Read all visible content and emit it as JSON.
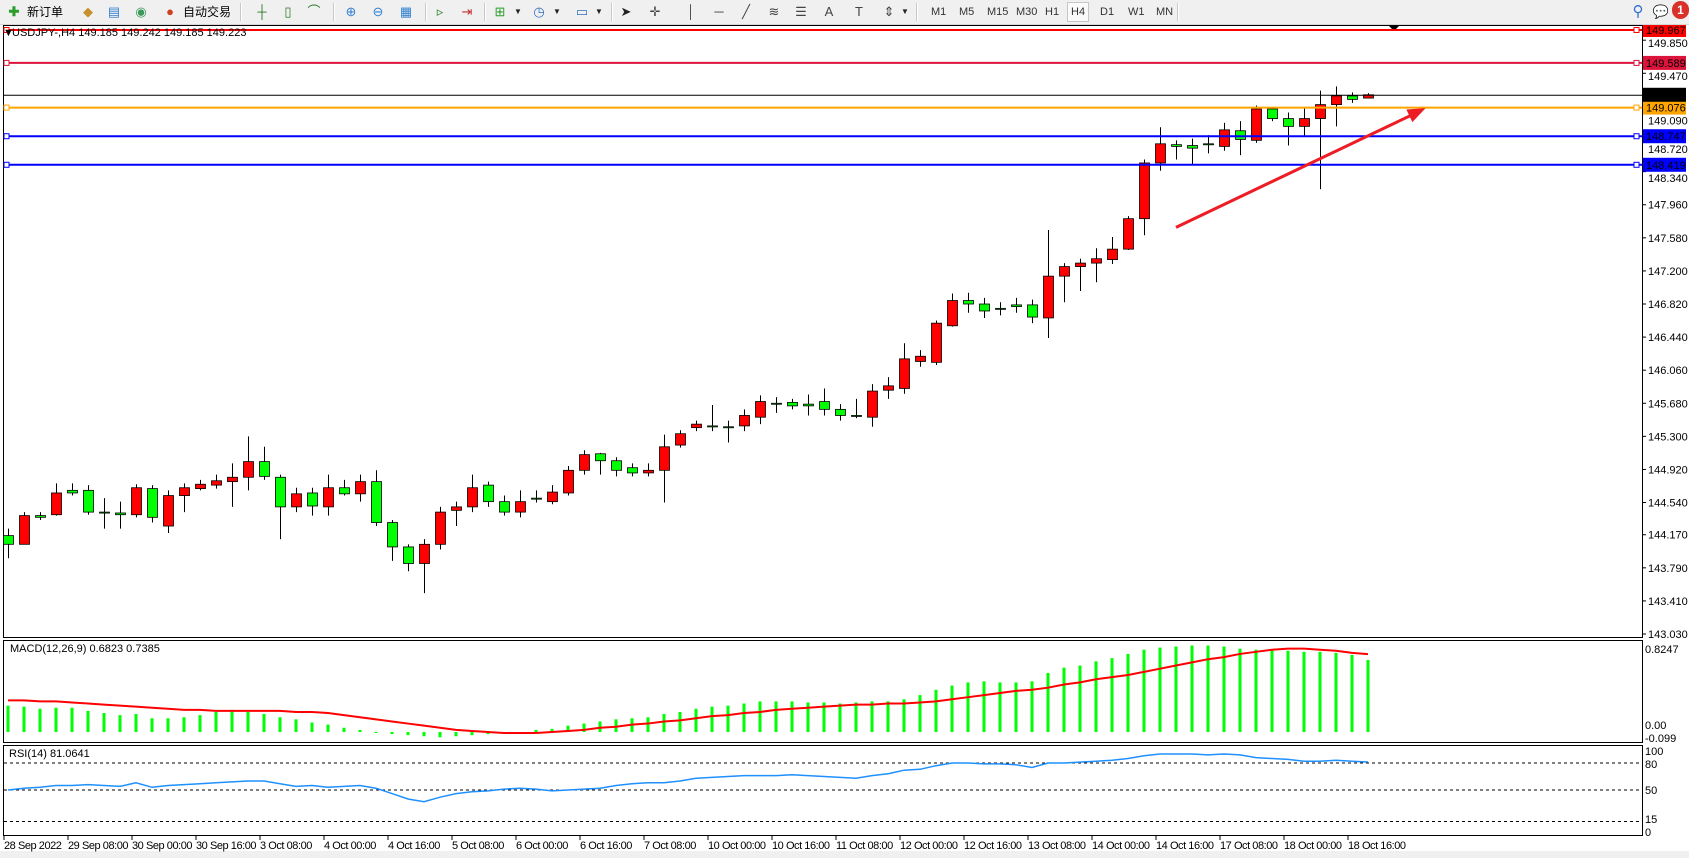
{
  "toolbar": {
    "new_order_label": "新订单",
    "auto_trading_label": "自动交易",
    "icons": [
      "new-order-icon",
      "gold-icon",
      "terminal-icon",
      "signals-icon",
      "auto-trading-icon",
      "bar-chart-icon",
      "candlestick-icon",
      "line-chart-icon",
      "zoom-in-icon",
      "zoom-out-icon",
      "tile-windows-icon",
      "chart-shift-icon",
      "autoscroll-icon",
      "new-chart-icon",
      "periods-icon",
      "templates-icon",
      "cursor-icon",
      "crosshair-icon",
      "vertical-line-icon",
      "horizontal-line-icon",
      "trendline-icon",
      "fibonacci-icon",
      "fibo-fan-icon",
      "text-icon",
      "text-label-icon",
      "arrows-icon",
      "search-icon",
      "notifications-icon"
    ],
    "text_tool_label": "A",
    "text_label_tool": "T",
    "timeframes": [
      "M1",
      "M5",
      "M15",
      "M30",
      "H1",
      "H4",
      "D1",
      "W1",
      "MN"
    ],
    "selected_timeframe": "H4",
    "notification_count": "1"
  },
  "chart": {
    "symbol_line": "USDJPY-,H4  149.185 149.242 149.185 149.223",
    "colors": {
      "bull": "#ff0000",
      "bear": "#00ff00",
      "wick": "#000000",
      "macd_hist": "#00ff00",
      "macd_signal": "#ff0000",
      "rsi": "#1e90ff",
      "arrow": "#ee1c25"
    },
    "price_ticks": [
      "149.850",
      "149.470",
      "149.090",
      "148.720",
      "148.340",
      "147.960",
      "147.580",
      "147.200",
      "146.820",
      "146.440",
      "146.060",
      "145.680",
      "145.300",
      "144.920",
      "144.540",
      "144.170",
      "143.790",
      "143.410",
      "143.030"
    ],
    "price_range": [
      143.03,
      149.967
    ],
    "horizontal_lines": [
      {
        "price": 149.967,
        "label": "149.967",
        "color": "#ff0000"
      },
      {
        "price": 149.589,
        "label": "149.589",
        "color": "#dc143c"
      },
      {
        "price": 149.076,
        "label": "149.076",
        "color": "#ffa500"
      },
      {
        "price": 148.747,
        "label": "148.747",
        "color": "#0000ff"
      },
      {
        "price": 148.419,
        "label": "148.419",
        "color": "#0000ff"
      }
    ],
    "bid": {
      "price": 149.223,
      "label": "149.223",
      "color": "#000000"
    },
    "arrow_annotation": {
      "from": {
        "bar": 73,
        "price": 147.7
      },
      "to": {
        "bar": 88.6,
        "price": 149.07
      }
    },
    "x_labels": [
      "28 Sep 2022",
      "29 Sep 08:00",
      "30 Sep 00:00",
      "30 Sep 16:00",
      "3 Oct 08:00",
      "4 Oct 00:00",
      "4 Oct 16:00",
      "5 Oct 08:00",
      "6 Oct 00:00",
      "6 Oct 16:00",
      "7 Oct 08:00",
      "10 Oct 00:00",
      "10 Oct 16:00",
      "11 Oct 08:00",
      "12 Oct 00:00",
      "12 Oct 16:00",
      "13 Oct 08:00",
      "14 Oct 00:00",
      "14 Oct 16:00",
      "17 Oct 08:00",
      "18 Oct 00:00",
      "18 Oct 16:00"
    ],
    "ohlc": [
      [
        144.16,
        144.24,
        143.9,
        144.06
      ],
      [
        144.06,
        144.43,
        144.06,
        144.39
      ],
      [
        144.39,
        144.43,
        144.34,
        144.37
      ],
      [
        144.4,
        144.76,
        144.39,
        144.65
      ],
      [
        144.68,
        144.76,
        144.62,
        144.65
      ],
      [
        144.68,
        144.74,
        144.4,
        144.43
      ],
      [
        144.43,
        144.59,
        144.24,
        144.42
      ],
      [
        144.42,
        144.55,
        144.24,
        144.4
      ],
      [
        144.4,
        144.75,
        144.37,
        144.71
      ],
      [
        144.7,
        144.74,
        144.31,
        144.37
      ],
      [
        144.27,
        144.68,
        144.19,
        144.62
      ],
      [
        144.62,
        144.76,
        144.43,
        144.71
      ],
      [
        144.7,
        144.8,
        144.68,
        144.75
      ],
      [
        144.74,
        144.86,
        144.7,
        144.79
      ],
      [
        144.78,
        144.99,
        144.49,
        144.83
      ],
      [
        144.83,
        145.3,
        144.68,
        145.01
      ],
      [
        145.01,
        145.18,
        144.8,
        144.84
      ],
      [
        144.83,
        144.86,
        144.12,
        144.49
      ],
      [
        144.49,
        144.71,
        144.43,
        144.64
      ],
      [
        144.65,
        144.71,
        144.39,
        144.5
      ],
      [
        144.49,
        144.86,
        144.39,
        144.71
      ],
      [
        144.71,
        144.8,
        144.62,
        144.64
      ],
      [
        144.64,
        144.86,
        144.55,
        144.78
      ],
      [
        144.78,
        144.91,
        144.27,
        144.31
      ],
      [
        144.31,
        144.34,
        143.87,
        144.03
      ],
      [
        144.03,
        144.06,
        143.75,
        143.84
      ],
      [
        143.84,
        144.12,
        143.5,
        144.06
      ],
      [
        144.06,
        144.49,
        144.0,
        144.43
      ],
      [
        144.45,
        144.55,
        144.27,
        144.49
      ],
      [
        144.49,
        144.86,
        144.43,
        144.71
      ],
      [
        144.74,
        144.78,
        144.49,
        144.55
      ],
      [
        144.55,
        144.62,
        144.39,
        144.43
      ],
      [
        144.43,
        144.68,
        144.37,
        144.55
      ],
      [
        144.59,
        144.68,
        144.54,
        144.58
      ],
      [
        144.55,
        144.74,
        144.52,
        144.66
      ],
      [
        144.65,
        144.96,
        144.62,
        144.91
      ],
      [
        144.91,
        145.14,
        144.86,
        145.09
      ],
      [
        145.1,
        145.11,
        144.86,
        145.02
      ],
      [
        145.02,
        145.06,
        144.84,
        144.91
      ],
      [
        144.94,
        144.99,
        144.84,
        144.88
      ],
      [
        144.88,
        144.99,
        144.84,
        144.91
      ],
      [
        144.91,
        145.32,
        144.54,
        145.18
      ],
      [
        145.2,
        145.37,
        145.17,
        145.33
      ],
      [
        145.4,
        145.48,
        145.36,
        145.44
      ],
      [
        145.42,
        145.66,
        145.36,
        145.41
      ],
      [
        145.41,
        145.48,
        145.23,
        145.4
      ],
      [
        145.42,
        145.61,
        145.36,
        145.54
      ],
      [
        145.52,
        145.77,
        145.44,
        145.7
      ],
      [
        145.68,
        145.75,
        145.57,
        145.67
      ],
      [
        145.69,
        145.73,
        145.61,
        145.65
      ],
      [
        145.67,
        145.78,
        145.54,
        145.65
      ],
      [
        145.7,
        145.85,
        145.54,
        145.61
      ],
      [
        145.61,
        145.67,
        145.48,
        145.54
      ],
      [
        145.54,
        145.73,
        145.51,
        145.53
      ],
      [
        145.52,
        145.9,
        145.41,
        145.82
      ],
      [
        145.83,
        145.98,
        145.73,
        145.88
      ],
      [
        145.85,
        146.37,
        145.79,
        146.19
      ],
      [
        146.16,
        146.29,
        146.1,
        146.22
      ],
      [
        146.15,
        146.63,
        146.12,
        146.6
      ],
      [
        146.57,
        146.94,
        146.56,
        146.86
      ],
      [
        146.86,
        146.95,
        146.72,
        146.82
      ],
      [
        146.82,
        146.89,
        146.66,
        146.74
      ],
      [
        146.77,
        146.84,
        146.69,
        146.76
      ],
      [
        146.81,
        146.89,
        146.72,
        146.79
      ],
      [
        146.81,
        146.87,
        146.6,
        146.67
      ],
      [
        146.66,
        147.67,
        146.43,
        147.14
      ],
      [
        147.14,
        147.29,
        146.84,
        147.25
      ],
      [
        147.25,
        147.34,
        146.97,
        147.29
      ],
      [
        147.29,
        147.46,
        147.07,
        147.34
      ],
      [
        147.33,
        147.59,
        147.28,
        147.45
      ],
      [
        147.45,
        147.83,
        147.44,
        147.8
      ],
      [
        147.8,
        148.48,
        147.61,
        148.44
      ],
      [
        148.44,
        148.85,
        148.35,
        148.66
      ],
      [
        148.65,
        148.7,
        148.48,
        148.63
      ],
      [
        148.64,
        148.72,
        148.42,
        148.61
      ],
      [
        148.66,
        148.76,
        148.55,
        148.65
      ],
      [
        148.63,
        148.9,
        148.58,
        148.82
      ],
      [
        148.81,
        148.92,
        148.53,
        148.71
      ],
      [
        148.7,
        149.1,
        148.67,
        149.06
      ],
      [
        149.06,
        149.08,
        148.92,
        148.95
      ],
      [
        148.95,
        149.02,
        148.64,
        148.86
      ],
      [
        148.86,
        149.07,
        148.74,
        148.95
      ],
      [
        148.95,
        149.27,
        148.14,
        149.11
      ],
      [
        149.11,
        149.32,
        148.86,
        149.21
      ],
      [
        149.21,
        149.25,
        149.13,
        149.17
      ],
      [
        149.185,
        149.242,
        149.185,
        149.223
      ]
    ]
  },
  "macd": {
    "label": "MACD(12,26,9) 0.6823 0.7385",
    "axis_top": "0.8247",
    "axis_zero": "0.00",
    "axis_bottom": "-0.099",
    "range": [
      -0.099,
      0.8247
    ],
    "main": [
      0.25,
      0.24,
      0.22,
      0.23,
      0.23,
      0.2,
      0.18,
      0.16,
      0.17,
      0.13,
      0.13,
      0.14,
      0.16,
      0.19,
      0.21,
      0.19,
      0.17,
      0.14,
      0.12,
      0.09,
      0.07,
      0.04,
      0.02,
      0.0,
      -0.02,
      -0.03,
      -0.04,
      -0.05,
      -0.04,
      -0.03,
      -0.02,
      -0.01,
      0.0,
      0.02,
      0.03,
      0.06,
      0.08,
      0.1,
      0.12,
      0.13,
      0.14,
      0.17,
      0.19,
      0.22,
      0.24,
      0.25,
      0.27,
      0.29,
      0.29,
      0.29,
      0.28,
      0.28,
      0.27,
      0.28,
      0.29,
      0.29,
      0.31,
      0.35,
      0.4,
      0.44,
      0.47,
      0.48,
      0.47,
      0.47,
      0.48,
      0.56,
      0.61,
      0.63,
      0.67,
      0.7,
      0.74,
      0.78,
      0.8,
      0.81,
      0.82,
      0.82,
      0.81,
      0.79,
      0.78,
      0.78,
      0.77,
      0.76,
      0.76,
      0.75,
      0.73,
      0.6823
    ],
    "signal": [
      0.3,
      0.3,
      0.29,
      0.29,
      0.28,
      0.27,
      0.26,
      0.25,
      0.24,
      0.23,
      0.22,
      0.21,
      0.21,
      0.2,
      0.2,
      0.2,
      0.2,
      0.2,
      0.19,
      0.19,
      0.18,
      0.16,
      0.14,
      0.12,
      0.1,
      0.08,
      0.06,
      0.04,
      0.02,
      0.01,
      0.0,
      -0.01,
      -0.01,
      -0.01,
      0.0,
      0.01,
      0.02,
      0.04,
      0.05,
      0.07,
      0.08,
      0.1,
      0.11,
      0.13,
      0.15,
      0.16,
      0.18,
      0.19,
      0.21,
      0.22,
      0.23,
      0.24,
      0.25,
      0.26,
      0.26,
      0.27,
      0.27,
      0.28,
      0.29,
      0.31,
      0.33,
      0.35,
      0.37,
      0.39,
      0.4,
      0.42,
      0.45,
      0.47,
      0.5,
      0.52,
      0.54,
      0.57,
      0.6,
      0.63,
      0.66,
      0.69,
      0.71,
      0.74,
      0.76,
      0.78,
      0.79,
      0.79,
      0.78,
      0.77,
      0.75,
      0.7385
    ]
  },
  "rsi": {
    "label": "RSI(14) 81.0641",
    "levels": [
      "100",
      "80",
      "50",
      "15",
      "0"
    ],
    "dashed_levels": [
      80,
      50,
      15
    ],
    "values": [
      50,
      52,
      53,
      55,
      55,
      56,
      55,
      54,
      58,
      53,
      55,
      56,
      57,
      58,
      59,
      60,
      60,
      57,
      54,
      55,
      53,
      54,
      55,
      52,
      46,
      40,
      37,
      42,
      46,
      48,
      49,
      51,
      52,
      51,
      49,
      50,
      51,
      52,
      55,
      57,
      58,
      58,
      60,
      63,
      64,
      65,
      66,
      66,
      66,
      67,
      66,
      65,
      64,
      63,
      66,
      68,
      72,
      73,
      77,
      80,
      80,
      79,
      79,
      78,
      75,
      80,
      80,
      81,
      82,
      83,
      85,
      88,
      90,
      90,
      90,
      89,
      90,
      89,
      86,
      85,
      84,
      82,
      82,
      83,
      82,
      81.0641
    ]
  }
}
